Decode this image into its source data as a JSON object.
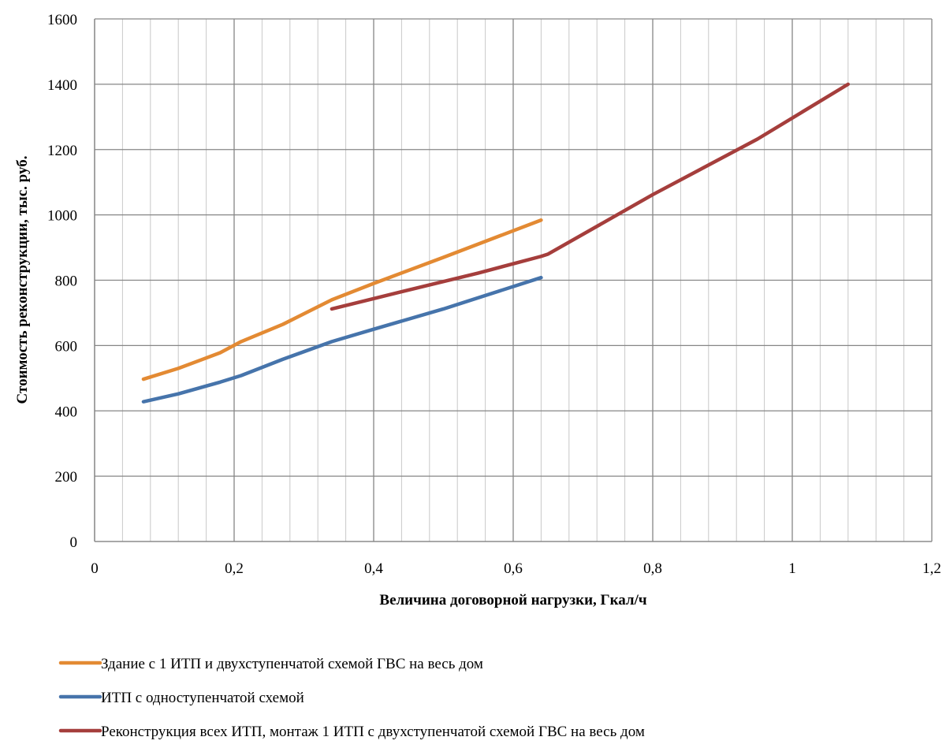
{
  "chart_data": {
    "type": "line",
    "title": "",
    "xlabel": "Величина договорной нагрузки, Гкал/ч",
    "ylabel": "Стоимость реконструкции, тыс. руб.",
    "xlim": [
      0,
      1.2
    ],
    "ylim": [
      0,
      1600
    ],
    "x_ticks": [
      0,
      0.2,
      0.4,
      0.6,
      0.8,
      1,
      1.2
    ],
    "x_tick_labels": [
      "0",
      "0,2",
      "0,4",
      "0,6",
      "0,8",
      "1",
      "1,2"
    ],
    "y_ticks": [
      0,
      200,
      400,
      600,
      800,
      1000,
      1200,
      1400,
      1600
    ],
    "y_tick_labels": [
      "0",
      "200",
      "400",
      "600",
      "800",
      "1000",
      "1200",
      "1400",
      "1600"
    ],
    "grid": {
      "major_x": 0.2,
      "minor_x": 0.04,
      "major_y": 200
    },
    "legend_position": "bottom",
    "series": [
      {
        "name": "Здание с 1 ИТП и двухступенчатой схемой ГВС на весь дом",
        "color": "#E38A33",
        "points": [
          [
            0.07,
            497
          ],
          [
            0.12,
            530
          ],
          [
            0.18,
            578
          ],
          [
            0.21,
            612
          ],
          [
            0.27,
            665
          ],
          [
            0.34,
            740
          ],
          [
            0.4,
            790
          ],
          [
            0.5,
            870
          ],
          [
            0.64,
            984
          ]
        ]
      },
      {
        "name": "ИТП с одноступенчатой схемой",
        "color": "#4674AB",
        "points": [
          [
            0.07,
            428
          ],
          [
            0.12,
            452
          ],
          [
            0.18,
            488
          ],
          [
            0.21,
            508
          ],
          [
            0.27,
            558
          ],
          [
            0.34,
            612
          ],
          [
            0.4,
            650
          ],
          [
            0.5,
            712
          ],
          [
            0.64,
            808
          ]
        ]
      },
      {
        "name": "Реконструкция всех ИТП, монтаж 1 ИТП с двухступенчатой схемой ГВС на весь дом",
        "color": "#A53E3C",
        "points": [
          [
            0.34,
            712
          ],
          [
            0.45,
            770
          ],
          [
            0.55,
            822
          ],
          [
            0.64,
            873
          ],
          [
            0.65,
            880
          ],
          [
            0.8,
            1062
          ],
          [
            0.95,
            1232
          ],
          [
            1.08,
            1400
          ]
        ]
      }
    ]
  }
}
